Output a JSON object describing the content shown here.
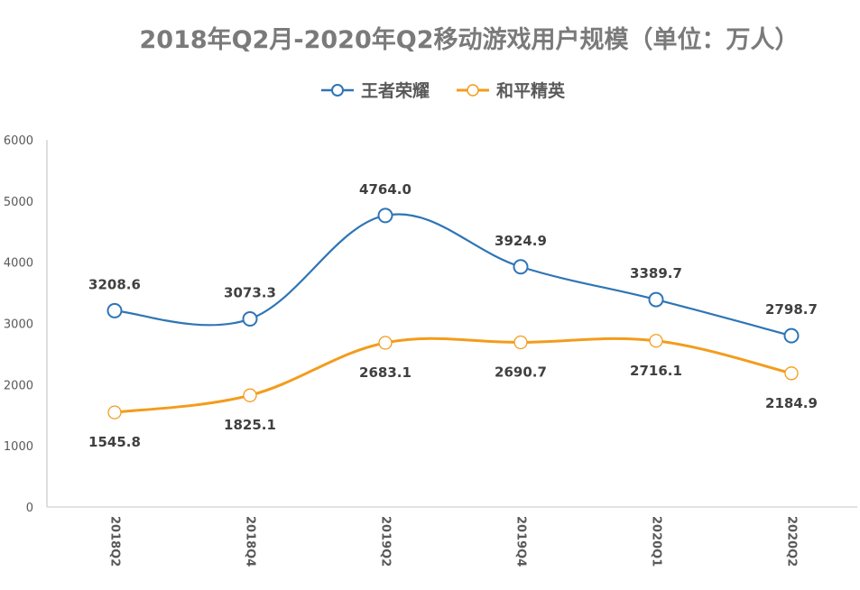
{
  "chart_data": {
    "type": "line",
    "title": "2018年Q2月-2020年Q2移动游戏用户规模（单位：万人）",
    "xlabel": "",
    "ylabel": "",
    "categories": [
      "2018Q2",
      "2018Q4",
      "2019Q2",
      "2019Q4",
      "2020Q1",
      "2020Q2"
    ],
    "yticks": [
      "0",
      "1000",
      "2000",
      "3000",
      "4000",
      "5000",
      "6000"
    ],
    "ylim": [
      0,
      6000
    ],
    "grid": false,
    "legend_position": "top-center",
    "smooth": true,
    "series": [
      {
        "name": "王者荣耀",
        "color": "#2e75b6",
        "values": [
          3208.6,
          3073.3,
          4764.0,
          3924.9,
          3389.7,
          2798.7
        ],
        "labels": [
          "3208.6",
          "3073.3",
          "4764.0",
          "3924.9",
          "3389.7",
          "2798.7"
        ],
        "label_position": "above"
      },
      {
        "name": "和平精英",
        "color": "#f39c1c",
        "values": [
          1545.8,
          1825.1,
          2683.1,
          2690.7,
          2716.1,
          2184.9
        ],
        "labels": [
          "1545.8",
          "1825.1",
          "2683.1",
          "2690.7",
          "2716.1",
          "2184.9"
        ],
        "label_position": "below"
      }
    ]
  }
}
